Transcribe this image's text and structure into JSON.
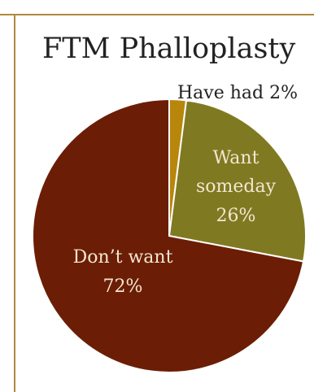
{
  "colors": {
    "border": "#b08a3e",
    "have_had": "#b8860b",
    "want_someday": "#7f7a22",
    "dont_want": "#6b1e05",
    "label_light": "#f2e6d0",
    "label_dark": "#222222"
  },
  "chart_data": {
    "type": "pie",
    "title": "FTM Phalloplasty",
    "slices": [
      {
        "name": "Have had",
        "value": 2,
        "display": "Have had 2%",
        "color": "#b8860b"
      },
      {
        "name": "Want someday",
        "value": 26,
        "display": "Want someday 26%",
        "color": "#7f7a22"
      },
      {
        "name": "Don’t want",
        "value": 72,
        "display": "Don’t want 72%",
        "color": "#6b1e05"
      }
    ],
    "labels": {
      "have_had": "Have had 2%",
      "want_line1": "Want",
      "want_line2": "someday",
      "want_line3": "26%",
      "dont_line1": "Don’t want",
      "dont_line2": "72%"
    }
  }
}
